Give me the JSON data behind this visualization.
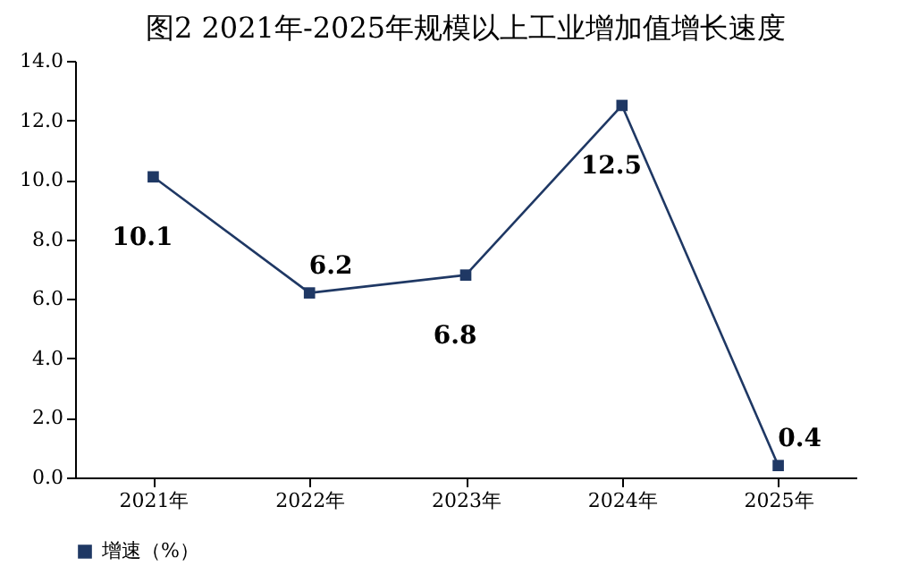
{
  "chart_data": {
    "type": "line",
    "title": "图2  2021年-2025年规模以上工业增加值增长速度",
    "categories": [
      "2021年",
      "2022年",
      "2023年",
      "2024年",
      "2025年"
    ],
    "series": [
      {
        "name": "增速（%）",
        "color": "#1f3864",
        "values": [
          10.1,
          6.2,
          6.8,
          12.5,
          0.4
        ]
      }
    ],
    "ylim": [
      0,
      14
    ],
    "yticks": [
      {
        "value": 0,
        "label": "0.0"
      },
      {
        "value": 2,
        "label": "2.0"
      },
      {
        "value": 4,
        "label": "4.0"
      },
      {
        "value": 6,
        "label": "6.0"
      },
      {
        "value": 8,
        "label": "8.0"
      },
      {
        "value": 10,
        "label": "10.0"
      },
      {
        "value": 12,
        "label": "12.0"
      },
      {
        "value": 14,
        "label": "14.0"
      }
    ],
    "data_labels": true,
    "marker": "square",
    "line_style": "solid",
    "grid": false,
    "legend": "bottom"
  }
}
